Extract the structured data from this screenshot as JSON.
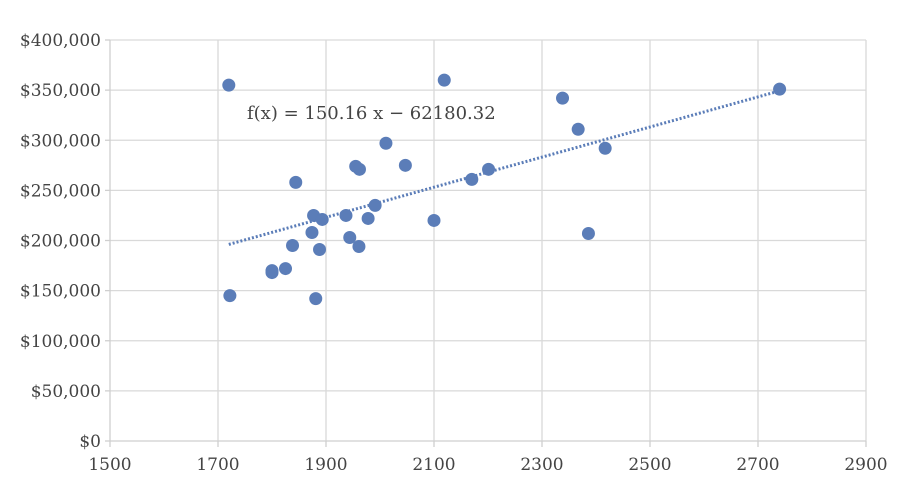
{
  "chart_data": {
    "type": "scatter",
    "title": "",
    "xlabel": "",
    "ylabel": "",
    "xlim": [
      1500,
      2900
    ],
    "ylim": [
      0,
      400000
    ],
    "x_ticks": [
      1500,
      1700,
      1900,
      2100,
      2300,
      2500,
      2700,
      2900
    ],
    "y_ticks": [
      0,
      50000,
      100000,
      150000,
      200000,
      250000,
      300000,
      350000,
      400000
    ],
    "x_tick_labels": [
      "1500",
      "1700",
      "1900",
      "2100",
      "2300",
      "2500",
      "2700",
      "2900"
    ],
    "y_tick_labels": [
      "$0",
      "$50,000",
      "$100,000",
      "$150,000",
      "$200,000",
      "$250,000",
      "$300,000",
      "$350,000",
      "$400,000"
    ],
    "grid": true,
    "legend": "none",
    "marker_color": "#5b7db8",
    "trendline": {
      "type": "linear",
      "slope": 150.16,
      "intercept": -62180.32,
      "x_range": [
        1720,
        2740
      ],
      "style": "dotted",
      "color": "#5b7db8",
      "equation_label": "f(x) = 150.16 x − 62180.32"
    },
    "series": [
      {
        "points": [
          {
            "x": 1720,
            "y": 355000
          },
          {
            "x": 1722,
            "y": 145000
          },
          {
            "x": 1800,
            "y": 170000
          },
          {
            "x": 1800,
            "y": 168000
          },
          {
            "x": 1825,
            "y": 172000
          },
          {
            "x": 1838,
            "y": 195000
          },
          {
            "x": 1844,
            "y": 258000
          },
          {
            "x": 1874,
            "y": 208000
          },
          {
            "x": 1877,
            "y": 225000
          },
          {
            "x": 1881,
            "y": 142000
          },
          {
            "x": 1888,
            "y": 191000
          },
          {
            "x": 1893,
            "y": 221000
          },
          {
            "x": 1937,
            "y": 225000
          },
          {
            "x": 1944,
            "y": 203000
          },
          {
            "x": 1955,
            "y": 274000
          },
          {
            "x": 1961,
            "y": 194000
          },
          {
            "x": 1962,
            "y": 271000
          },
          {
            "x": 1978,
            "y": 222000
          },
          {
            "x": 1991,
            "y": 235000
          },
          {
            "x": 2011,
            "y": 297000
          },
          {
            "x": 2047,
            "y": 275000
          },
          {
            "x": 2100,
            "y": 220000
          },
          {
            "x": 2119,
            "y": 360000
          },
          {
            "x": 2170,
            "y": 261000
          },
          {
            "x": 2201,
            "y": 271000
          },
          {
            "x": 2338,
            "y": 342000
          },
          {
            "x": 2367,
            "y": 311000
          },
          {
            "x": 2386,
            "y": 207000
          },
          {
            "x": 2417,
            "y": 292000
          },
          {
            "x": 2740,
            "y": 351000
          }
        ]
      }
    ]
  }
}
